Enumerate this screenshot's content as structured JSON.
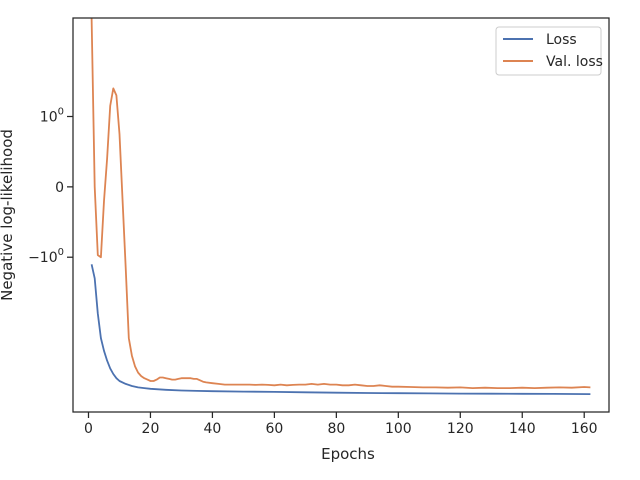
{
  "chart_data": {
    "type": "line",
    "title": "",
    "xlabel": "Epochs",
    "ylabel": "Negative log-likelihood",
    "xlim": [
      -5,
      168
    ],
    "xticks": [
      0,
      20,
      40,
      60,
      80,
      100,
      120,
      140,
      160
    ],
    "xtick_labels": [
      "0",
      "20",
      "40",
      "60",
      "80",
      "100",
      "120",
      "140",
      "160"
    ],
    "yscale": "symlog",
    "ylim": [
      -3.2,
      2.4
    ],
    "yticks": [
      {
        "value": 1,
        "label": "10",
        "exp": "0"
      },
      {
        "value": 0,
        "label": "0",
        "exp": ""
      },
      {
        "value": -1,
        "label": "−10",
        "exp": "0"
      }
    ],
    "grid": false,
    "legend": {
      "placement": "upper-right",
      "entries": [
        "Loss",
        "Val. loss"
      ]
    },
    "series": [
      {
        "name": "Loss",
        "color": "#4c72b0",
        "x": [
          1,
          2,
          3,
          4,
          5,
          6,
          7,
          8,
          9,
          10,
          12,
          14,
          16,
          18,
          20,
          25,
          30,
          35,
          40,
          50,
          60,
          70,
          80,
          90,
          100,
          110,
          120,
          130,
          140,
          150,
          162
        ],
        "y": [
          -1.1,
          -1.3,
          -1.8,
          -2.15,
          -2.33,
          -2.47,
          -2.58,
          -2.66,
          -2.72,
          -2.76,
          -2.8,
          -2.83,
          -2.85,
          -2.86,
          -2.87,
          -2.885,
          -2.895,
          -2.9,
          -2.905,
          -2.91,
          -2.915,
          -2.92,
          -2.925,
          -2.93,
          -2.933,
          -2.936,
          -2.938,
          -2.94,
          -2.942,
          -2.943,
          -2.945
        ]
      },
      {
        "name": "Val. loss",
        "color": "#dd8452",
        "x": [
          1,
          2,
          3,
          4,
          5,
          6,
          7,
          8,
          9,
          10,
          11,
          12,
          13,
          14,
          15,
          16,
          17,
          18,
          19,
          20,
          21,
          22,
          23,
          24,
          25,
          26,
          27,
          28,
          29,
          30,
          31,
          32,
          33,
          34,
          35,
          36,
          37,
          38,
          40,
          42,
          44,
          46,
          48,
          50,
          52,
          54,
          56,
          58,
          60,
          62,
          64,
          66,
          68,
          70,
          72,
          74,
          76,
          78,
          80,
          82,
          84,
          86,
          88,
          90,
          92,
          94,
          96,
          98,
          100,
          104,
          108,
          112,
          116,
          120,
          124,
          128,
          132,
          136,
          140,
          144,
          148,
          152,
          156,
          160,
          162
        ],
        "y": [
          2.4,
          0.0,
          -0.97,
          -1.0,
          -0.2,
          0.4,
          1.15,
          1.4,
          1.3,
          0.75,
          -0.2,
          -1.15,
          -2.15,
          -2.4,
          -2.55,
          -2.64,
          -2.69,
          -2.72,
          -2.74,
          -2.76,
          -2.76,
          -2.74,
          -2.71,
          -2.71,
          -2.72,
          -2.73,
          -2.74,
          -2.74,
          -2.73,
          -2.72,
          -2.72,
          -2.72,
          -2.72,
          -2.73,
          -2.73,
          -2.75,
          -2.77,
          -2.78,
          -2.79,
          -2.8,
          -2.81,
          -2.81,
          -2.81,
          -2.81,
          -2.81,
          -2.815,
          -2.81,
          -2.815,
          -2.82,
          -2.81,
          -2.82,
          -2.815,
          -2.81,
          -2.81,
          -2.8,
          -2.81,
          -2.8,
          -2.81,
          -2.81,
          -2.82,
          -2.82,
          -2.81,
          -2.82,
          -2.83,
          -2.83,
          -2.82,
          -2.83,
          -2.84,
          -2.84,
          -2.845,
          -2.85,
          -2.85,
          -2.855,
          -2.85,
          -2.86,
          -2.855,
          -2.86,
          -2.86,
          -2.855,
          -2.86,
          -2.855,
          -2.85,
          -2.855,
          -2.845,
          -2.85
        ]
      }
    ]
  }
}
